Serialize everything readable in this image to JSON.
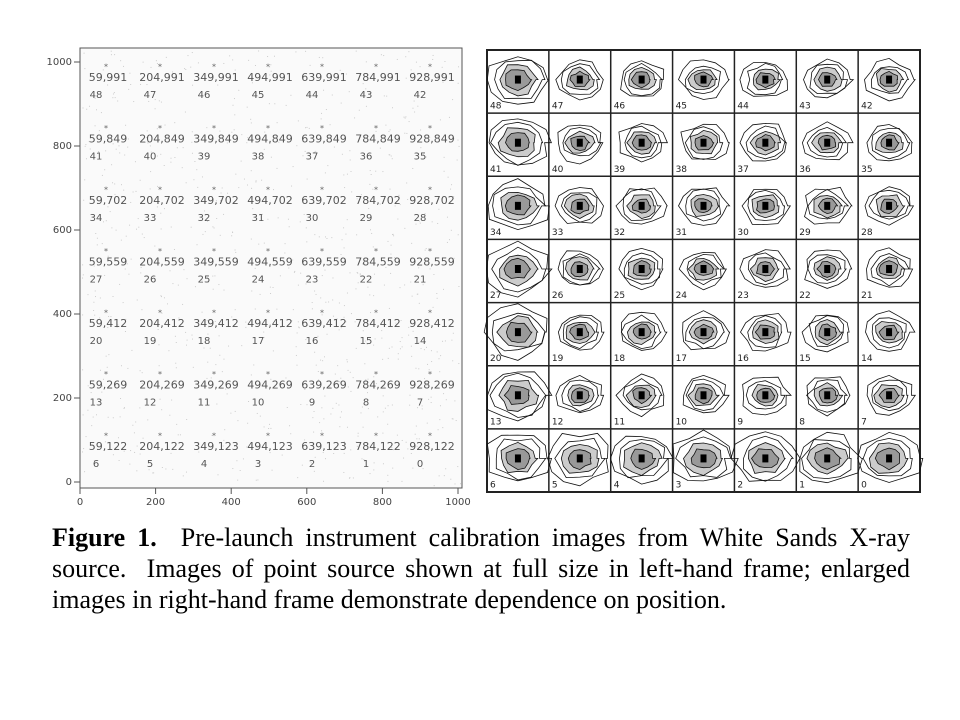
{
  "figure": {
    "left_frame": {
      "xlim": [
        0,
        1000
      ],
      "ylim": [
        0,
        1000
      ],
      "xticks": [
        0,
        200,
        400,
        600,
        800,
        1000
      ],
      "yticks": [
        0,
        200,
        400,
        600,
        800,
        1000
      ],
      "rows": [
        [
          [
            "59,991",
            "48"
          ],
          [
            "204,991",
            "47"
          ],
          [
            "349,991",
            "46"
          ],
          [
            "494,991",
            "45"
          ],
          [
            "639,991",
            "44"
          ],
          [
            "784,991",
            "43"
          ],
          [
            "928,991",
            "42"
          ]
        ],
        [
          [
            "59,849",
            "41"
          ],
          [
            "204,849",
            "40"
          ],
          [
            "349,849",
            "39"
          ],
          [
            "494,849",
            "38"
          ],
          [
            "639,849",
            "37"
          ],
          [
            "784,849",
            "36"
          ],
          [
            "928,849",
            "35"
          ]
        ],
        [
          [
            "59,702",
            "34"
          ],
          [
            "204,702",
            "33"
          ],
          [
            "349,702",
            "32"
          ],
          [
            "494,702",
            "31"
          ],
          [
            "639,702",
            "30"
          ],
          [
            "784,702",
            "29"
          ],
          [
            "928,702",
            "28"
          ]
        ],
        [
          [
            "59,559",
            "27"
          ],
          [
            "204,559",
            "26"
          ],
          [
            "349,559",
            "25"
          ],
          [
            "494,559",
            "24"
          ],
          [
            "639,559",
            "23"
          ],
          [
            "784,559",
            "22"
          ],
          [
            "928,559",
            "21"
          ]
        ],
        [
          [
            "59,412",
            "20"
          ],
          [
            "204,412",
            "19"
          ],
          [
            "349,412",
            "18"
          ],
          [
            "494,412",
            "17"
          ],
          [
            "639,412",
            "16"
          ],
          [
            "784,412",
            "15"
          ],
          [
            "928,412",
            "14"
          ]
        ],
        [
          [
            "59,269",
            "13"
          ],
          [
            "204,269",
            "12"
          ],
          [
            "349,269",
            "11"
          ],
          [
            "494,269",
            "10"
          ],
          [
            "639,269",
            "9"
          ],
          [
            "784,269",
            "8"
          ],
          [
            "928,269",
            "7"
          ]
        ],
        [
          [
            "59,122",
            "6"
          ],
          [
            "204,122",
            "5"
          ],
          [
            "349,123",
            "4"
          ],
          [
            "494,123",
            "3"
          ],
          [
            "639,123",
            "2"
          ],
          [
            "784,122",
            "1"
          ],
          [
            "928,122",
            "0"
          ]
        ]
      ]
    },
    "right_frame": {
      "rows": [
        [
          "48",
          "47",
          "46",
          "45",
          "44",
          "43",
          "42"
        ],
        [
          "41",
          "40",
          "39",
          "38",
          "37",
          "36",
          "35"
        ],
        [
          "34",
          "33",
          "32",
          "31",
          "30",
          "29",
          "28"
        ],
        [
          "27",
          "26",
          "25",
          "24",
          "23",
          "22",
          "21"
        ],
        [
          "20",
          "19",
          "18",
          "17",
          "16",
          "15",
          "14"
        ],
        [
          "13",
          "12",
          "11",
          "10",
          "9",
          "8",
          "7"
        ],
        [
          "6",
          "5",
          "4",
          "3",
          "2",
          "1",
          "0"
        ]
      ]
    },
    "caption": {
      "label": "Figure 1.",
      "text": "Pre-launch instrument calibration images from White Sands X-ray source.  Images of point source shown at full size in left-hand frame; enlarged images in right-hand frame demonstrate dependence on position."
    }
  }
}
